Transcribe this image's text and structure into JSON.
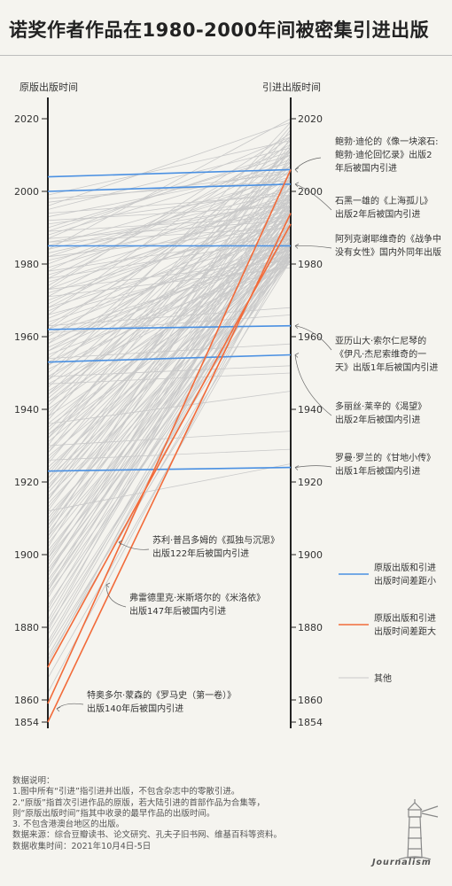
{
  "title": "诺奖作者作品在1980-2000年间被密集引进出版",
  "left_axis_label": "原版出版时间",
  "right_axis_label": "引进出版时间",
  "colors": {
    "small_gap": "#4a90e2",
    "large_gap": "#f26b3a",
    "other": "#c9c9c9",
    "axis": "#222222"
  },
  "chart_data": {
    "type": "slope",
    "left_axis": {
      "label": "原版出版时间",
      "range": [
        1854,
        2025
      ],
      "ticks": [
        2020,
        2000,
        1980,
        1960,
        1940,
        1920,
        1900,
        1880,
        1860,
        1854
      ]
    },
    "right_axis": {
      "label": "引进出版时间",
      "range": [
        1854,
        2025
      ],
      "ticks": [
        2020,
        2000,
        1980,
        1960,
        1940,
        1920,
        1900,
        1880,
        1860,
        1854
      ]
    },
    "legend": [
      {
        "label": "原版出版和引进出版时间差距小",
        "color": "#4a90e2"
      },
      {
        "label": "原版出版和引进出版时间差距大",
        "color": "#f26b3a"
      },
      {
        "label": "其他",
        "color": "#c9c9c9"
      }
    ],
    "highlighted_small_gap": [
      {
        "label": "鲍勃·迪伦的《像一块滚石:鲍勃·迪伦回忆录》出版2年后被国内引进",
        "original": 2004,
        "introduced": 2006
      },
      {
        "label": "石黑一雄的《上海孤儿》出版2年后被国内引进",
        "original": 2000,
        "introduced": 2002
      },
      {
        "label": "阿列克谢耶维奇的《战争中没有女性》国内外同年出版",
        "original": 1985,
        "introduced": 1985
      },
      {
        "label": "亚历山大·索尔仁尼琴的《伊凡·杰尼索维奇的一天》出版1年后被国内引进",
        "original": 1962,
        "introduced": 1963
      },
      {
        "label": "多丽丝·莱辛的《渴望》出版2年后被国内引进",
        "original": 1953,
        "introduced": 1955
      },
      {
        "label": "罗曼·罗兰的《甘地小传》出版1年后被国内引进",
        "original": 1923,
        "introduced": 1924
      }
    ],
    "highlighted_large_gap": [
      {
        "label": "苏利·普吕多姆的《孤独与沉思》出版122年后被国内引进",
        "original": 1869,
        "introduced": 1991
      },
      {
        "label": "弗雷德里克·米斯塔尔的《米洛依》出版147年后被国内引进",
        "original": 1859,
        "introduced": 2006
      },
      {
        "label": "特奥多尔·蒙森的《罗马史（第一卷）》出版140年后被国内引进",
        "original": 1854,
        "introduced": 1994
      }
    ],
    "other_series": [
      [
        1995,
        2012
      ],
      [
        1993,
        2006
      ],
      [
        1990,
        2010
      ],
      [
        1988,
        2008
      ],
      [
        1987,
        2015
      ],
      [
        1985,
        2004
      ],
      [
        1984,
        2000
      ],
      [
        1983,
        1998
      ],
      [
        1982,
        2003
      ],
      [
        1981,
        1996
      ],
      [
        1980,
        2005
      ],
      [
        1979,
        1999
      ],
      [
        1978,
        2010
      ],
      [
        1977,
        1996
      ],
      [
        1976,
        2009
      ],
      [
        1975,
        1995
      ],
      [
        1974,
        2013
      ],
      [
        1973,
        1998
      ],
      [
        1972,
        1992
      ],
      [
        1971,
        2007
      ],
      [
        1970,
        1994
      ],
      [
        1969,
        2002
      ],
      [
        1968,
        1988
      ],
      [
        1967,
        1997
      ],
      [
        1966,
        2015
      ],
      [
        1965,
        1992
      ],
      [
        1964,
        1986
      ],
      [
        1963,
        2004
      ],
      [
        1962,
        1989
      ],
      [
        1961,
        1982
      ],
      [
        1960,
        1999
      ],
      [
        1959,
        1984
      ],
      [
        1958,
        2011
      ],
      [
        1957,
        1987
      ],
      [
        1956,
        1996
      ],
      [
        1955,
        1980
      ],
      [
        1954,
        2001
      ],
      [
        1953,
        1985
      ],
      [
        1952,
        1993
      ],
      [
        1951,
        1983
      ],
      [
        1950,
        2006
      ],
      [
        1949,
        1988
      ],
      [
        1948,
        1995
      ],
      [
        1947,
        1981
      ],
      [
        1946,
        2008
      ],
      [
        1945,
        1986
      ],
      [
        1944,
        1992
      ],
      [
        1943,
        1999
      ],
      [
        1942,
        1983
      ],
      [
        1941,
        2003
      ],
      [
        1940,
        1987
      ],
      [
        1939,
        1998
      ],
      [
        1938,
        1982
      ],
      [
        1937,
        2012
      ],
      [
        1936,
        1990
      ],
      [
        1935,
        1985
      ],
      [
        1934,
        2001
      ],
      [
        1933,
        1981
      ],
      [
        1932,
        1994
      ],
      [
        1931,
        1986
      ],
      [
        1930,
        2017
      ],
      [
        1929,
        1989
      ],
      [
        1928,
        1998
      ],
      [
        1927,
        1982
      ],
      [
        1926,
        1993
      ],
      [
        1925,
        2005
      ],
      [
        1924,
        1984
      ],
      [
        1923,
        1991
      ],
      [
        1922,
        2001
      ],
      [
        1921,
        1983
      ],
      [
        1920,
        1996
      ],
      [
        1919,
        1986
      ],
      [
        1918,
        2009
      ],
      [
        1917,
        1990
      ],
      [
        1916,
        1981
      ],
      [
        1915,
        1999
      ],
      [
        1914,
        1985
      ],
      [
        1913,
        1993
      ],
      [
        1912,
        2003
      ],
      [
        1911,
        1982
      ],
      [
        1910,
        1988
      ],
      [
        1909,
        1997
      ],
      [
        1908,
        1983
      ],
      [
        1907,
        2000
      ],
      [
        1906,
        1991
      ],
      [
        1905,
        1981
      ],
      [
        1904,
        1995
      ],
      [
        1903,
        1986
      ],
      [
        1902,
        2010
      ],
      [
        1901,
        1984
      ],
      [
        1900,
        1992
      ],
      [
        1899,
        1981
      ],
      [
        1898,
        1989
      ],
      [
        1897,
        1998
      ],
      [
        1896,
        1983
      ],
      [
        1895,
        1987
      ],
      [
        1894,
        2004
      ],
      [
        1893,
        1982
      ],
      [
        1892,
        1994
      ],
      [
        1891,
        1985
      ],
      [
        1890,
        1990
      ],
      [
        1889,
        1981
      ],
      [
        1888,
        1996
      ],
      [
        1886,
        1984
      ],
      [
        1884,
        1988
      ],
      [
        1882,
        1999
      ],
      [
        1880,
        1983
      ],
      [
        1878,
        1986
      ],
      [
        1876,
        1992
      ],
      [
        1874,
        1981
      ],
      [
        1872,
        1989
      ],
      [
        1870,
        1995
      ],
      [
        1866,
        1983
      ],
      [
        1862,
        1987
      ],
      [
        1999,
        2014
      ],
      [
        1997,
        2005
      ],
      [
        1996,
        2019
      ],
      [
        1991,
        2000
      ],
      [
        1989,
        2011
      ],
      [
        1986,
        1997
      ],
      [
        1984,
        2020
      ],
      [
        1982,
        1990
      ],
      [
        1976,
        1987
      ],
      [
        1973,
        2016
      ],
      [
        1968,
        2002
      ],
      [
        1962,
        2007
      ],
      [
        1958,
        1994
      ],
      [
        1952,
        2014
      ],
      [
        1948,
        2019
      ],
      [
        1944,
        2007
      ],
      [
        1938,
        2018
      ],
      [
        1932,
        2011
      ],
      [
        1928,
        2013
      ],
      [
        1921,
        2004
      ],
      [
        1918,
        1995
      ],
      [
        1915,
        2012
      ],
      [
        1908,
        2005
      ],
      [
        1905,
        2015
      ],
      [
        1899,
        2000
      ],
      [
        1895,
        1996
      ],
      [
        1890,
        2003
      ],
      [
        1885,
        1998
      ],
      [
        1881,
        1993
      ],
      [
        1879,
        2002
      ],
      [
        1875,
        1990
      ],
      [
        1871,
        1985
      ],
      [
        1933,
        1991
      ],
      [
        1942,
        1996
      ],
      [
        1956,
        1986
      ],
      [
        1966,
        1984
      ],
      [
        1973,
        1981
      ],
      [
        1978,
        1988
      ],
      [
        1949,
        1952
      ],
      [
        1936,
        1945
      ],
      [
        1930,
        1934
      ],
      [
        1926,
        1929
      ],
      [
        1912,
        1925
      ],
      [
        1963,
        1968
      ],
      [
        1954,
        1958
      ],
      [
        1947,
        1950
      ],
      [
        1994,
        1999
      ],
      [
        1992,
        1996
      ],
      [
        1989,
        1993
      ],
      [
        1987,
        1992
      ],
      [
        1986,
        1990
      ],
      [
        1998,
        2003
      ],
      [
        1971,
        1979
      ],
      [
        1961,
        1966
      ]
    ]
  },
  "annotations": [
    {
      "lines": [
        "鲍勃·迪伦的《像一块滚石:",
        "鲍勃·迪伦回忆录》出版2",
        "年后被国内引进"
      ]
    },
    {
      "lines": [
        "石黑一雄的《上海孤儿》",
        "出版2年后被国内引进"
      ]
    },
    {
      "lines": [
        "阿列克谢耶维奇的《战争中",
        "没有女性》国内外同年出版"
      ]
    },
    {
      "lines": [
        "亚历山大·索尔仁尼琴的",
        "《伊凡·杰尼索维奇的一",
        "天》出版1年后被国内引进"
      ]
    },
    {
      "lines": [
        "多丽丝·莱辛的《渴望》",
        "出版2年后被国内引进"
      ]
    },
    {
      "lines": [
        "罗曼·罗兰的《甘地小传》",
        "出版1年后被国内引进"
      ]
    },
    {
      "lines": [
        "苏利·普吕多姆的《孤独与沉思》",
        "出版122年后被国内引进"
      ]
    },
    {
      "lines": [
        "弗雷德里克·米斯塔尔的《米洛依》",
        "出版147年后被国内引进"
      ]
    },
    {
      "lines": [
        "特奥多尔·蒙森的《罗马史（第一卷）》",
        "出版140年后被国内引进"
      ]
    }
  ],
  "notes": [
    "数据说明：",
    "1.图中所有“引进”指引进并出版，不包含杂志中的零散引进。",
    "2.“原版”指首次引进作品的原版，若大陆引进的首部作品为合集等，",
    "则“原版出版时间”指其中收录的最早作品的出版时间。",
    "3. 不包含港澳台地区的出版。",
    "数据来源：综合豆瓣读书、论文研究、孔夫子旧书网、维基百科等资料。",
    "数据收集时间：2021年10月4日-5日"
  ],
  "brand": "Journalism"
}
